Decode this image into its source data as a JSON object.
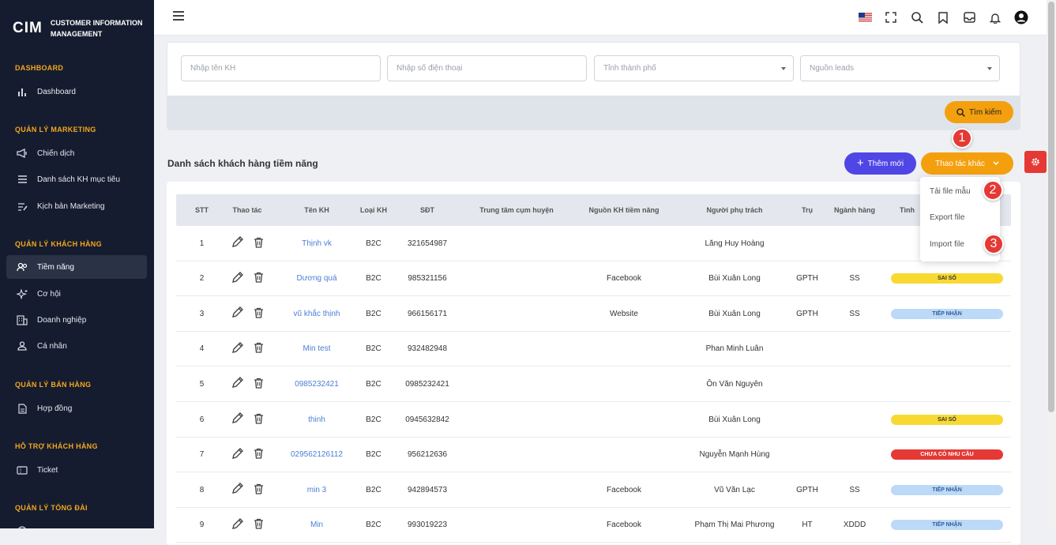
{
  "sidebar": {
    "logo_mark": "CIM",
    "logo_text_1": "CUSTOMER INFORMATION",
    "logo_text_2": "MANAGEMENT",
    "sections": [
      {
        "title": "DASHBOARD"
      },
      {
        "title": "QUẢN LÝ MARKETING"
      },
      {
        "title": "QUẢN LÝ KHÁCH HÀNG"
      },
      {
        "title": "QUẢN LÝ BÁN HÀNG"
      },
      {
        "title": "HỖ TRỢ KHÁCH HÀNG"
      },
      {
        "title": "QUẢN LÝ TỔNG ĐÀI"
      }
    ],
    "items": [
      {
        "label": "Dashboard",
        "icon": "bar-chart-icon"
      },
      {
        "label": "Chiến dịch",
        "icon": "megaphone-icon"
      },
      {
        "label": "Danh sách KH mục tiêu",
        "icon": "list-icon"
      },
      {
        "label": "Kịch bản Marketing",
        "icon": "script-icon"
      },
      {
        "label": "Tiềm năng",
        "icon": "users-icon"
      },
      {
        "label": "Cơ hội",
        "icon": "sparkle-icon"
      },
      {
        "label": "Doanh nghiệp",
        "icon": "building-icon"
      },
      {
        "label": "Cá nhân",
        "icon": "person-icon"
      },
      {
        "label": "Hợp đồng",
        "icon": "document-icon"
      },
      {
        "label": "Ticket",
        "icon": "ticket-icon"
      }
    ]
  },
  "search": {
    "name_placeholder": "Nhập tên KH",
    "phone_placeholder": "Nhập số điện thoại",
    "city_placeholder": "Tỉnh thành phố",
    "source_placeholder": "Nguồn leads",
    "button": "Tìm kiếm"
  },
  "list": {
    "title": "Danh sách khách hàng tiềm năng",
    "add_button": "Thêm mới",
    "more_button": "Thao tác khác",
    "dropdown": [
      "Tải file mẫu",
      "Export file",
      "Import file"
    ],
    "callouts": [
      "1",
      "2",
      "3"
    ]
  },
  "table": {
    "headers": [
      "STT",
      "Thao tác",
      "Tên KH",
      "Loại KH",
      "SĐT",
      "Trung tâm cụm huyện",
      "Nguồn KH tiềm năng",
      "Người phụ trách",
      "Trụ",
      "Ngành hàng",
      "Tình"
    ],
    "rows": [
      {
        "stt": "1",
        "name": "Thịnh vk",
        "type": "B2C",
        "phone": "321654987",
        "center": "",
        "source": "",
        "owner": "Lăng Huy Hoàng",
        "tru": "",
        "nganh": "",
        "status": ""
      },
      {
        "stt": "2",
        "name": "Dương quá",
        "type": "B2C",
        "phone": "985321156",
        "center": "",
        "source": "Facebook",
        "owner": "Bùi Xuân Long",
        "tru": "GPTH",
        "nganh": "SS",
        "status": "SAI SỐ"
      },
      {
        "stt": "3",
        "name": "vũ khắc thịnh",
        "type": "B2C",
        "phone": "966156171",
        "center": "",
        "source": "Website",
        "owner": "Bùi Xuân Long",
        "tru": "GPTH",
        "nganh": "SS",
        "status": "TIẾP NHẬN"
      },
      {
        "stt": "4",
        "name": "Min test",
        "type": "B2C",
        "phone": "932482948",
        "center": "",
        "source": "",
        "owner": "Phan Minh Luân",
        "tru": "",
        "nganh": "",
        "status": ""
      },
      {
        "stt": "5",
        "name": "0985232421",
        "type": "B2C",
        "phone": "0985232421",
        "center": "",
        "source": "",
        "owner": "Ôn Văn Nguyên",
        "tru": "",
        "nganh": "",
        "status": ""
      },
      {
        "stt": "6",
        "name": "thinh",
        "type": "B2C",
        "phone": "0945632842",
        "center": "",
        "source": "",
        "owner": "Bùi Xuân Long",
        "tru": "",
        "nganh": "",
        "status": "SAI SỐ"
      },
      {
        "stt": "7",
        "name": "029562126112",
        "type": "B2C",
        "phone": "956212636",
        "center": "",
        "source": "",
        "owner": "Nguyễn Mạnh Hùng",
        "tru": "",
        "nganh": "",
        "status": "CHƯA CÓ NHU CẦU"
      },
      {
        "stt": "8",
        "name": "min 3",
        "type": "B2C",
        "phone": "942894573",
        "center": "",
        "source": "Facebook",
        "owner": "Vũ Văn Lạc",
        "tru": "GPTH",
        "nganh": "SS",
        "status": "TIẾP NHẬN"
      },
      {
        "stt": "9",
        "name": "Min",
        "type": "B2C",
        "phone": "993019223",
        "center": "",
        "source": "Facebook",
        "owner": "Phạm Thị Mai Phương",
        "tru": "HT",
        "nganh": "XDDD",
        "status": "TIẾP NHẬN"
      }
    ]
  },
  "status_colors": {
    "SAI SỐ": {
      "bg": "#f7d932",
      "fg": "#333333"
    },
    "TIẾP NHẬN": {
      "bg": "#bcd9f7",
      "fg": "#2f5f9e"
    },
    "CHƯA CÓ NHU CẦU": {
      "bg": "#e53935",
      "fg": "#ffffff"
    }
  },
  "colors": {
    "accent": "#f4a00e",
    "primary": "#4f46e5",
    "sidebar": "#151c2f",
    "section": "#f4a71d"
  }
}
